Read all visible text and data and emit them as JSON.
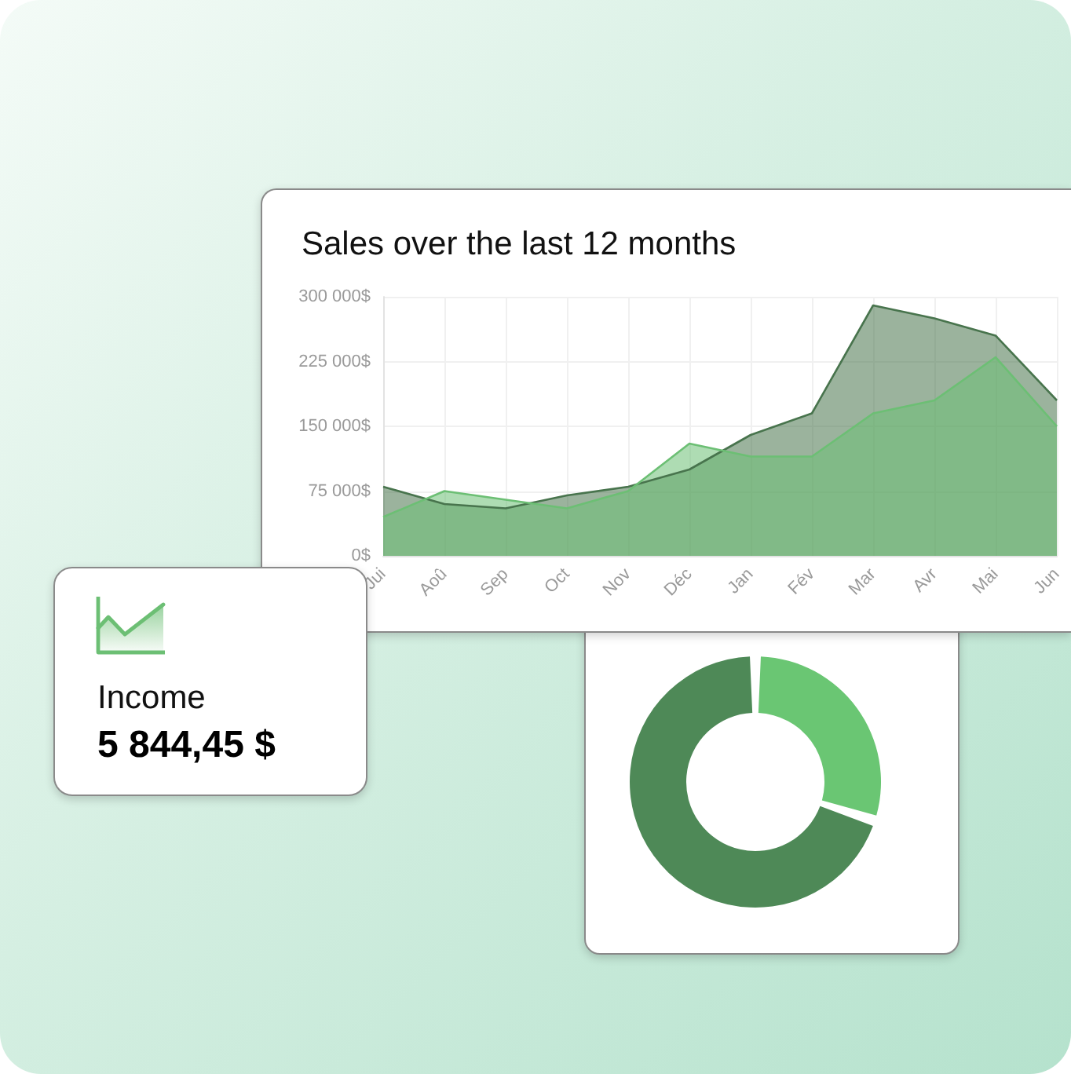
{
  "chart_data": [
    {
      "type": "area",
      "title": "Sales over the last 12 months",
      "categories": [
        "Jui",
        "Aoû",
        "Sep",
        "Oct",
        "Nov",
        "Déc",
        "Jan",
        "Fév",
        "Mar",
        "Avr",
        "Mai",
        "Jun"
      ],
      "series": [
        {
          "color": "#48744d",
          "values": [
            80000,
            60000,
            55000,
            70000,
            80000,
            100000,
            140000,
            165000,
            290000,
            275000,
            255000,
            180000
          ]
        },
        {
          "color": "#6cbf74",
          "values": [
            45000,
            75000,
            65000,
            55000,
            75000,
            130000,
            115000,
            115000,
            165000,
            180000,
            230000,
            150000
          ]
        }
      ],
      "ylim": [
        0,
        300000
      ],
      "yticks": [
        {
          "value": 0,
          "label": "0$"
        },
        {
          "value": 75000,
          "label": "75 000$"
        },
        {
          "value": 150000,
          "label": "150 000$"
        },
        {
          "value": 225000,
          "label": "225 000$"
        },
        {
          "value": 300000,
          "label": "300 000$"
        }
      ],
      "grid": true
    },
    {
      "type": "other",
      "title": "Income",
      "annotations": [
        "5 844,45 $"
      ]
    },
    {
      "type": "donut",
      "categories": [
        null,
        null
      ],
      "values": [
        30,
        70
      ],
      "colors": [
        "#6ac673",
        "#4e8957"
      ]
    }
  ]
}
